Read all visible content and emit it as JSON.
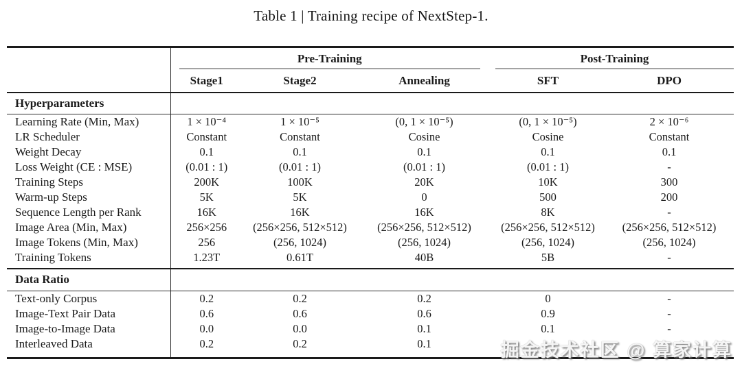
{
  "title": "Table 1 | Training recipe of NextStep-1.",
  "table": {
    "group_headers": {
      "pre_training": "Pre-Training",
      "post_training": "Post-Training"
    },
    "column_headers": [
      "Stage1",
      "Stage2",
      "Annealing",
      "SFT",
      "DPO"
    ],
    "sections": [
      {
        "name": "Hyperparameters",
        "rows": [
          {
            "label": "Learning Rate (Min, Max)",
            "values": [
              "1 × 10⁻⁴",
              "1 × 10⁻⁵",
              "(0, 1 × 10⁻⁵)",
              "(0, 1 × 10⁻⁵)",
              "2 × 10⁻⁶"
            ]
          },
          {
            "label": "LR Scheduler",
            "values": [
              "Constant",
              "Constant",
              "Cosine",
              "Cosine",
              "Constant"
            ]
          },
          {
            "label": "Weight Decay",
            "values": [
              "0.1",
              "0.1",
              "0.1",
              "0.1",
              "0.1"
            ]
          },
          {
            "label": "Loss Weight (CE : MSE)",
            "values": [
              "(0.01 : 1)",
              "(0.01 : 1)",
              "(0.01 : 1)",
              "(0.01 : 1)",
              "-"
            ]
          },
          {
            "label": "Training Steps",
            "values": [
              "200K",
              "100K",
              "20K",
              "10K",
              "300"
            ]
          },
          {
            "label": "Warm-up Steps",
            "values": [
              "5K",
              "5K",
              "0",
              "500",
              "200"
            ]
          },
          {
            "label": "Sequence Length per Rank",
            "values": [
              "16K",
              "16K",
              "16K",
              "8K",
              "-"
            ]
          },
          {
            "label": "Image Area (Min, Max)",
            "values": [
              "256×256",
              "(256×256, 512×512)",
              "(256×256, 512×512)",
              "(256×256, 512×512)",
              "(256×256, 512×512)"
            ]
          },
          {
            "label": "Image Tokens (Min, Max)",
            "values": [
              "256",
              "(256, 1024)",
              "(256, 1024)",
              "(256, 1024)",
              "(256, 1024)"
            ]
          },
          {
            "label": "Training Tokens",
            "values": [
              "1.23T",
              "0.61T",
              "40B",
              "5B",
              "-"
            ]
          }
        ]
      },
      {
        "name": "Data Ratio",
        "rows": [
          {
            "label": "Text-only Corpus",
            "values": [
              "0.2",
              "0.2",
              "0.2",
              "0",
              "-"
            ]
          },
          {
            "label": "Image-Text Pair Data",
            "values": [
              "0.6",
              "0.6",
              "0.6",
              "0.9",
              "-"
            ]
          },
          {
            "label": "Image-to-Image Data",
            "values": [
              "0.0",
              "0.0",
              "0.1",
              "0.1",
              "-"
            ]
          },
          {
            "label": "Interleaved Data",
            "values": [
              "0.2",
              "0.2",
              "0.1",
              "",
              ""
            ]
          }
        ]
      }
    ]
  },
  "watermark": "掘金技术社区 @ 算家计算"
}
